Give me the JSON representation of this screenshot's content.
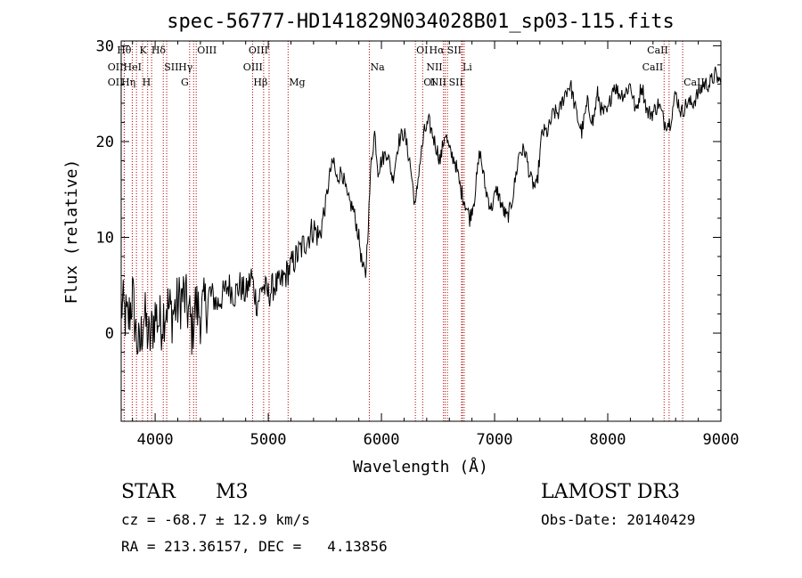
{
  "chart_data": {
    "type": "line",
    "title": "spec-56777-HD141829N034028B01_sp03-115.fits",
    "xlabel": "Wavelength (Å)",
    "ylabel": "Flux (relative)",
    "xlim": [
      3700,
      9000
    ],
    "ylim": [
      -9.2,
      30.5
    ],
    "xticks": [
      4000,
      5000,
      6000,
      7000,
      8000,
      9000
    ],
    "yticks": [
      0,
      10,
      20,
      30
    ],
    "series": [
      {
        "name": "spectrum",
        "x": [
          3700,
          3760,
          3800,
          3830,
          3860,
          3900,
          3950,
          4000,
          4050,
          4100,
          4150,
          4200,
          4250,
          4300,
          4330,
          4350,
          4400,
          4450,
          4500,
          4550,
          4600,
          4650,
          4700,
          4750,
          4800,
          4850,
          4900,
          4950,
          5000,
          5050,
          5100,
          5150,
          5200,
          5250,
          5300,
          5350,
          5400,
          5450,
          5500,
          5550,
          5580,
          5600,
          5650,
          5700,
          5750,
          5800,
          5830,
          5860,
          5890,
          5910,
          5940,
          5970,
          6000,
          6050,
          6100,
          6150,
          6200,
          6250,
          6300,
          6330,
          6380,
          6420,
          6470,
          6520,
          6563,
          6600,
          6650,
          6700,
          6730,
          6780,
          6820,
          6870,
          6920,
          6970,
          7020,
          7070,
          7110,
          7140,
          7170,
          7220,
          7270,
          7320,
          7370,
          7420,
          7470,
          7520,
          7570,
          7620,
          7670,
          7720,
          7770,
          7820,
          7870,
          7910,
          7950,
          8000,
          8050,
          8100,
          8150,
          8200,
          8250,
          8300,
          8350,
          8400,
          8450,
          8500,
          8550,
          8600,
          8650,
          8700,
          8750,
          8800,
          8850,
          8900,
          8950,
          9000
        ],
        "y": [
          3,
          1,
          4,
          0,
          -2,
          2,
          -1,
          2,
          1,
          3,
          2,
          3,
          4,
          2,
          0,
          3,
          2,
          3,
          4,
          3,
          4,
          5,
          4,
          5,
          4,
          6,
          3,
          5,
          4,
          5,
          5,
          6,
          7,
          8,
          9,
          10,
          11,
          10,
          13,
          17,
          18,
          16,
          17,
          14,
          13,
          10,
          7,
          6,
          13,
          18,
          21,
          17,
          18,
          19,
          16,
          20,
          21,
          18,
          13,
          17,
          21,
          22,
          20,
          18,
          21,
          19,
          18,
          15,
          14,
          12,
          14,
          19,
          15,
          13,
          15,
          13,
          12,
          13,
          15,
          19,
          19,
          16,
          15,
          21,
          21,
          23,
          23,
          25,
          26,
          23,
          21,
          24,
          22,
          25,
          23,
          23,
          26,
          25,
          25,
          26,
          23,
          26,
          23,
          23,
          24,
          22,
          22,
          25,
          23,
          24,
          24,
          25,
          26,
          26,
          27,
          26
        ]
      }
    ],
    "lines": [
      {
        "label": "Hθ",
        "x": 3798,
        "row": 0,
        "side": "l"
      },
      {
        "label": "OII",
        "x": 3727,
        "row": 1,
        "side": "l"
      },
      {
        "label": "OII",
        "x": 3727,
        "row": 2,
        "side": "l"
      },
      {
        "label": "Hη",
        "x": 3835,
        "row": 2,
        "side": "l"
      },
      {
        "label": "HeI",
        "x": 3889,
        "row": 1,
        "side": "l"
      },
      {
        "label": "K",
        "x": 3934,
        "row": 0,
        "side": "l"
      },
      {
        "label": "H",
        "x": 3969,
        "row": 2,
        "side": "l"
      },
      {
        "label": "SII",
        "x": 4072,
        "row": 1,
        "side": "r"
      },
      {
        "label": "Hδ",
        "x": 4102,
        "row": 0,
        "side": "l"
      },
      {
        "label": "G",
        "x": 4305,
        "row": 2,
        "side": "l"
      },
      {
        "label": "Hγ",
        "x": 4340,
        "row": 1,
        "side": "l"
      },
      {
        "label": "OIII",
        "x": 4363,
        "row": 0,
        "side": "r"
      },
      {
        "label": "Hβ",
        "x": 4861,
        "row": 2,
        "side": "r"
      },
      {
        "label": "OIII",
        "x": 4959,
        "row": 1,
        "side": "l"
      },
      {
        "label": "OIII",
        "x": 5007,
        "row": 0,
        "side": "l"
      },
      {
        "label": "Mg",
        "x": 5175,
        "row": 2,
        "side": "r"
      },
      {
        "label": "Na",
        "x": 5893,
        "row": 1,
        "side": "r"
      },
      {
        "label": "OI",
        "x": 6300,
        "row": 0,
        "side": "r"
      },
      {
        "label": "OI",
        "x": 6364,
        "row": 2,
        "side": "r"
      },
      {
        "label": "NII",
        "x": 6548,
        "row": 1,
        "side": "l"
      },
      {
        "label": "Hα",
        "x": 6563,
        "row": 0,
        "side": "l"
      },
      {
        "label": "NII",
        "x": 6583,
        "row": 2,
        "side": "l"
      },
      {
        "label": "Li",
        "x": 6708,
        "row": 1,
        "side": "r"
      },
      {
        "label": "SII",
        "x": 6716,
        "row": 0,
        "side": "l"
      },
      {
        "label": "SII",
        "x": 6731,
        "row": 2,
        "side": "l"
      },
      {
        "label": "CaII",
        "x": 8498,
        "row": 1,
        "side": "l"
      },
      {
        "label": "CaII",
        "x": 8542,
        "row": 0,
        "side": "l"
      },
      {
        "label": "CaII",
        "x": 8662,
        "row": 2,
        "side": "r"
      }
    ]
  },
  "info": {
    "class": "STAR",
    "subclass": "M3",
    "survey": "LAMOST DR3",
    "redshift": "cz = -68.7 ± 12.9 km/s",
    "obs_date": "Obs-Date: 20140429",
    "coords": "RA = 213.36157, DEC =   4.13856"
  }
}
